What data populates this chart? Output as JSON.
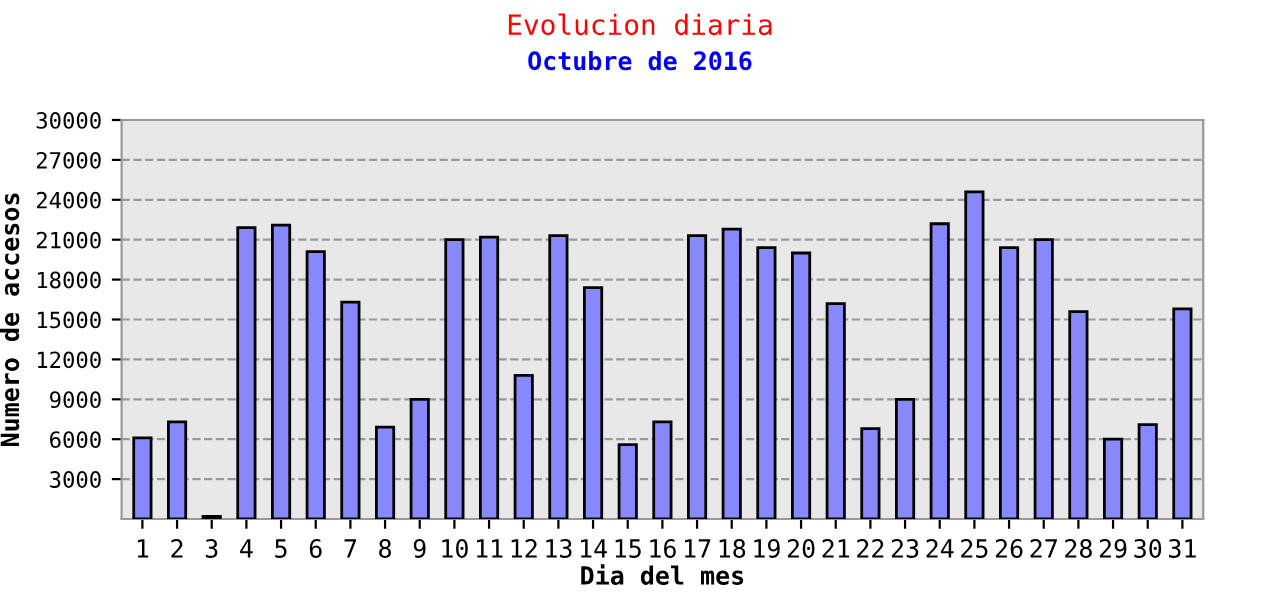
{
  "chart_data": {
    "type": "bar",
    "title": "Evolucion diaria",
    "subtitle": "Octubre de 2016",
    "xlabel": "Dia del mes",
    "ylabel": "Numero de accesos",
    "categories": [
      "1",
      "2",
      "3",
      "4",
      "5",
      "6",
      "7",
      "8",
      "9",
      "10",
      "11",
      "12",
      "13",
      "14",
      "15",
      "16",
      "17",
      "18",
      "19",
      "20",
      "21",
      "22",
      "23",
      "24",
      "25",
      "26",
      "27",
      "28",
      "29",
      "30",
      "31"
    ],
    "values": [
      6100,
      7300,
      200,
      21900,
      22100,
      20100,
      16300,
      6900,
      9000,
      21000,
      21200,
      10800,
      21300,
      17400,
      5600,
      7300,
      21300,
      21800,
      20400,
      20000,
      16200,
      6800,
      9000,
      22200,
      24600,
      20400,
      21000,
      15600,
      6000,
      7100,
      15800
    ],
    "color": "#8888ff",
    "ylim": [
      0,
      30000
    ],
    "yticks": [
      3000,
      6000,
      9000,
      12000,
      15000,
      18000,
      21000,
      24000,
      27000,
      30000
    ],
    "grid": "y"
  }
}
